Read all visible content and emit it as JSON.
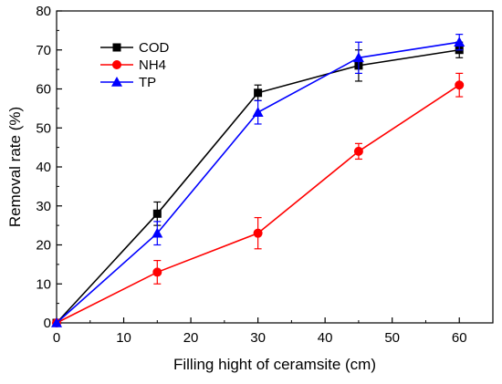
{
  "chart_data": {
    "type": "line",
    "title": "",
    "xlabel": "Filling hight of ceramsite (cm)",
    "ylabel": "Removal rate (%)",
    "xlim": [
      0,
      65
    ],
    "ylim": [
      0,
      80
    ],
    "xticks": [
      0,
      10,
      20,
      30,
      40,
      50,
      60
    ],
    "yticks": [
      0,
      10,
      20,
      30,
      40,
      50,
      60,
      70,
      80
    ],
    "grid": false,
    "legend_position": "top-left",
    "series": [
      {
        "name": "COD",
        "color": "#000000",
        "marker": "square",
        "x": [
          0,
          15,
          30,
          45,
          60
        ],
        "y": [
          0,
          28,
          59,
          66,
          70
        ],
        "error": [
          0,
          3,
          2,
          4,
          2
        ]
      },
      {
        "name": "NH4",
        "color": "#ff0000",
        "marker": "circle",
        "x": [
          0,
          15,
          30,
          45,
          60
        ],
        "y": [
          0,
          13,
          23,
          44,
          61
        ],
        "error": [
          0,
          3,
          4,
          2,
          3
        ]
      },
      {
        "name": "TP",
        "color": "#0000ff",
        "marker": "triangle",
        "x": [
          0,
          15,
          30,
          45,
          60
        ],
        "y": [
          0,
          23,
          54,
          68,
          72
        ],
        "error": [
          0,
          3,
          3,
          4,
          2
        ]
      }
    ]
  }
}
